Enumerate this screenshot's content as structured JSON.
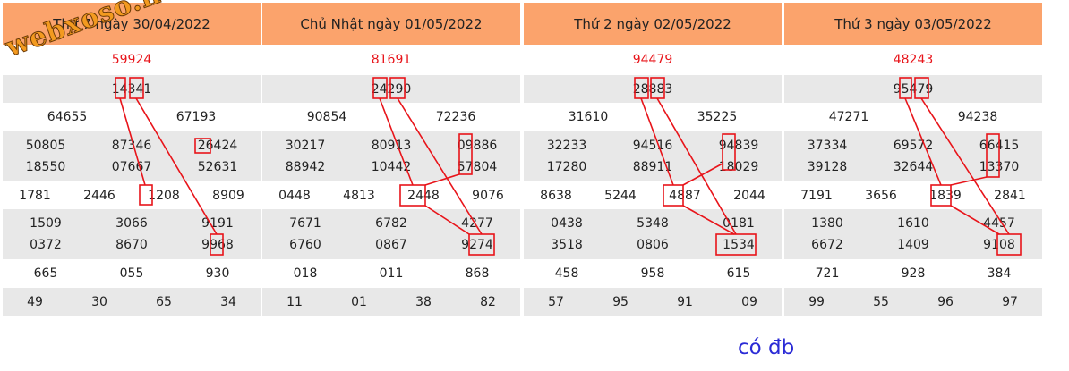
{
  "panels": [
    {
      "title": "Thứ 7 ngày 30/04/2022",
      "rows": [
        [
          "59924"
        ],
        [
          "14341"
        ],
        [
          "64655",
          "67193"
        ],
        [
          "50805",
          "87346",
          "26424",
          "18550",
          "07667",
          "52631"
        ],
        [
          "1781",
          "2446",
          "1208",
          "8909"
        ],
        [
          "1509",
          "3066",
          "9191",
          "0372",
          "8670",
          "9968"
        ],
        [
          "665",
          "055",
          "930"
        ],
        [
          "49",
          "30",
          "65",
          "34"
        ]
      ]
    },
    {
      "title": "Chủ Nhật ngày 01/05/2022",
      "rows": [
        [
          "81691"
        ],
        [
          "24290"
        ],
        [
          "90854",
          "72236"
        ],
        [
          "30217",
          "80913",
          "09886",
          "88942",
          "10442",
          "57804"
        ],
        [
          "0448",
          "4813",
          "2448",
          "9076"
        ],
        [
          "7671",
          "6782",
          "4277",
          "6760",
          "0867",
          "9274"
        ],
        [
          "018",
          "011",
          "868"
        ],
        [
          "11",
          "01",
          "38",
          "82"
        ]
      ]
    },
    {
      "title": "Thứ 2 ngày 02/05/2022",
      "rows": [
        [
          "94479"
        ],
        [
          "28883"
        ],
        [
          "31610",
          "35225"
        ],
        [
          "32233",
          "94516",
          "94839",
          "17280",
          "88911",
          "18029"
        ],
        [
          "8638",
          "5244",
          "4887",
          "2044"
        ],
        [
          "0438",
          "5348",
          "0181",
          "3518",
          "0806",
          "1534"
        ],
        [
          "458",
          "958",
          "615"
        ],
        [
          "57",
          "95",
          "91",
          "09"
        ]
      ]
    },
    {
      "title": "Thứ 3 ngày 03/05/2022",
      "rows": [
        [
          "48243"
        ],
        [
          "95479"
        ],
        [
          "47271",
          "94238"
        ],
        [
          "37334",
          "69572",
          "66415",
          "39128",
          "32644",
          "13370"
        ],
        [
          "7191",
          "3656",
          "1839",
          "2841"
        ],
        [
          "1380",
          "1610",
          "4457",
          "6672",
          "1409",
          "9108"
        ],
        [
          "721",
          "928",
          "384"
        ],
        [
          "99",
          "55",
          "96",
          "97"
        ]
      ]
    }
  ],
  "watermark": "webxoso.net",
  "footer": "có đb"
}
